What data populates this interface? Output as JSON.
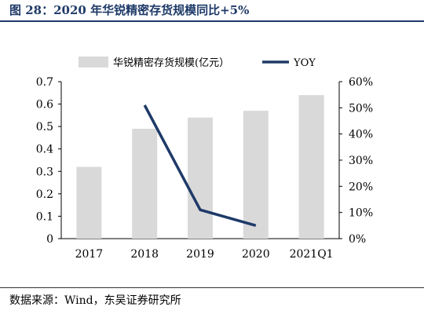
{
  "header": {
    "title": "图 28：2020 年华锐精密存货规模同比+5%"
  },
  "chart_data": {
    "type": "bar",
    "categories": [
      "2017",
      "2018",
      "2019",
      "2020",
      "2021Q1"
    ],
    "series": [
      {
        "name": "华锐精密存货规模(亿元）",
        "type": "bar",
        "axis": "left",
        "color": "#d9d9d9",
        "values": [
          0.32,
          0.49,
          0.54,
          0.57,
          0.64
        ]
      },
      {
        "name": "YOY",
        "type": "line",
        "axis": "right",
        "color": "#1f3a68",
        "values": [
          null,
          0.51,
          0.11,
          0.05,
          null
        ]
      }
    ],
    "ylim_left": [
      0,
      0.7
    ],
    "yticks_left": [
      "0",
      "0.1",
      "0.2",
      "0.3",
      "0.4",
      "0.5",
      "0.6",
      "0.7"
    ],
    "ylim_right": [
      0,
      0.6
    ],
    "yticks_right": [
      "0%",
      "10%",
      "20%",
      "30%",
      "40%",
      "50%",
      "60%"
    ],
    "legend_position": "top",
    "grid": false
  },
  "footer": {
    "source": "数据来源：Wind，东吴证券研究所"
  }
}
